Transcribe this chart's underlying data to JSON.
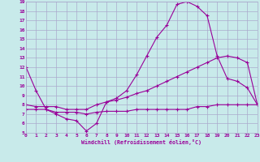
{
  "xlabel": "Windchill (Refroidissement éolien,°C)",
  "bg_color": "#c8eaea",
  "grid_color": "#aaaacc",
  "line_color": "#990099",
  "ylim": [
    5,
    19
  ],
  "xlim": [
    0,
    23
  ],
  "yticks": [
    5,
    6,
    7,
    8,
    9,
    10,
    11,
    12,
    13,
    14,
    15,
    16,
    17,
    18,
    19
  ],
  "xticks": [
    0,
    1,
    2,
    3,
    4,
    5,
    6,
    7,
    8,
    9,
    10,
    11,
    12,
    13,
    14,
    15,
    16,
    17,
    18,
    19,
    20,
    21,
    22,
    23
  ],
  "line1_x": [
    0,
    1,
    2,
    3,
    4,
    5,
    6,
    7,
    8,
    9,
    10,
    11,
    12,
    13,
    14,
    15,
    16,
    17,
    18,
    19,
    20,
    21,
    22,
    23
  ],
  "line1_y": [
    12,
    9.5,
    7.5,
    7.0,
    6.5,
    6.3,
    5.2,
    6.0,
    8.3,
    8.7,
    9.5,
    11.2,
    13.2,
    15.2,
    16.5,
    18.7,
    19.0,
    18.5,
    17.5,
    13.2,
    10.8,
    10.5,
    9.8,
    8.0
  ],
  "line2_x": [
    0,
    1,
    2,
    3,
    4,
    5,
    6,
    7,
    8,
    9,
    10,
    11,
    12,
    13,
    14,
    15,
    16,
    17,
    18,
    19,
    20,
    21,
    22,
    23
  ],
  "line2_y": [
    8.0,
    7.8,
    7.8,
    7.8,
    7.5,
    7.5,
    7.5,
    8.0,
    8.3,
    8.5,
    8.8,
    9.2,
    9.5,
    10.0,
    10.5,
    11.0,
    11.5,
    12.0,
    12.5,
    13.0,
    13.2,
    13.0,
    12.5,
    8.0
  ],
  "line3_x": [
    0,
    1,
    2,
    3,
    4,
    5,
    6,
    7,
    8,
    9,
    10,
    11,
    12,
    13,
    14,
    15,
    16,
    17,
    18,
    19,
    20,
    21,
    22,
    23
  ],
  "line3_y": [
    7.5,
    7.5,
    7.5,
    7.2,
    7.2,
    7.2,
    7.0,
    7.2,
    7.3,
    7.3,
    7.3,
    7.5,
    7.5,
    7.5,
    7.5,
    7.5,
    7.5,
    7.8,
    7.8,
    8.0,
    8.0,
    8.0,
    8.0,
    8.0
  ]
}
